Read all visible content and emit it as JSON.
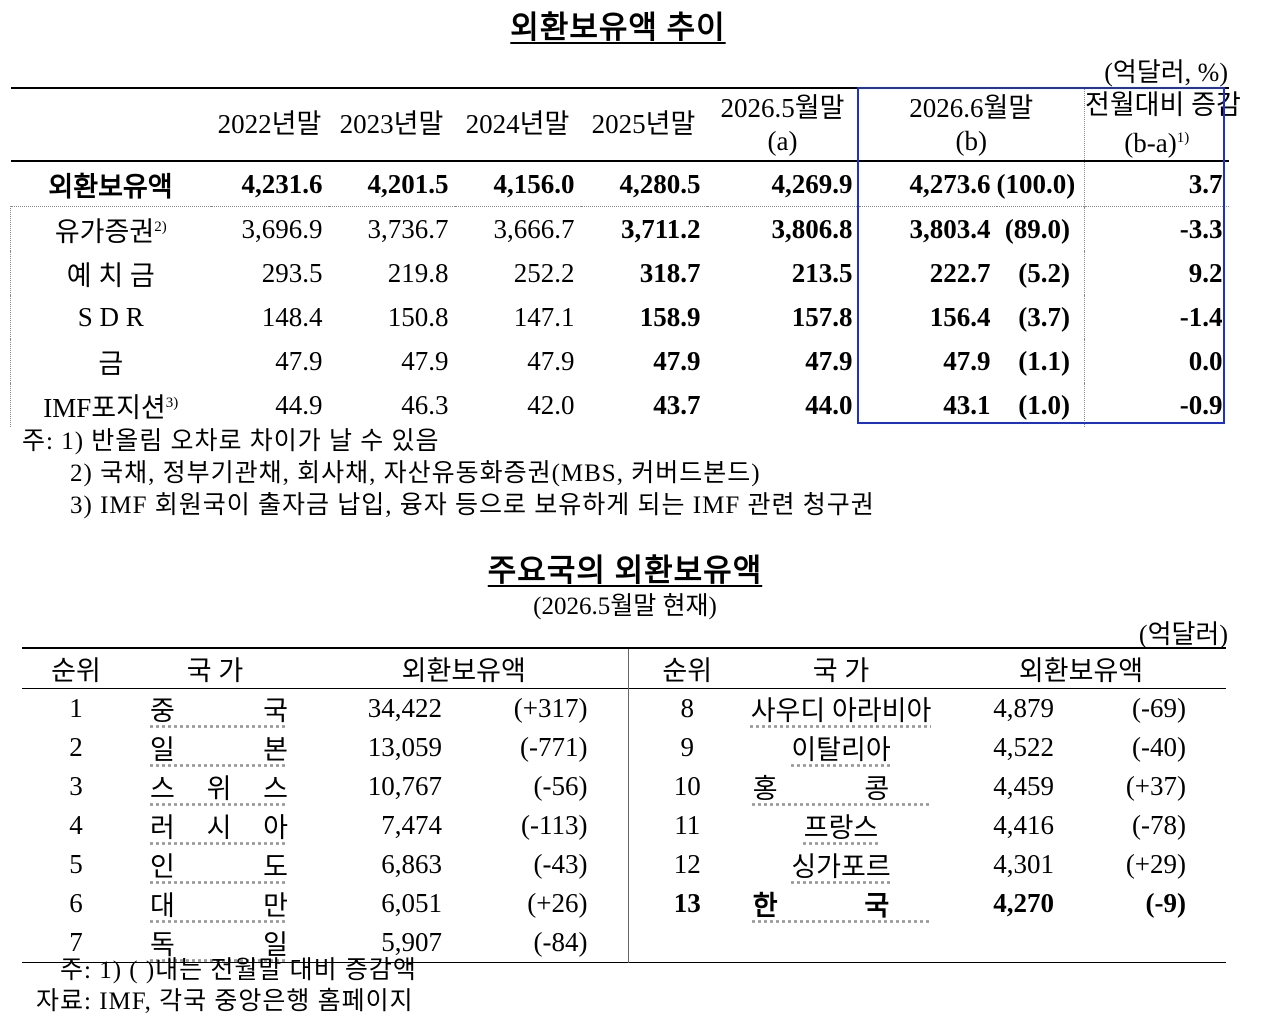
{
  "table1": {
    "title": "외환보유액 추이",
    "unit": "(억달러, %)",
    "headers": {
      "c2022": "2022년말",
      "c2023": "2023년말",
      "c2024": "2024년말",
      "c2025": "2025년말",
      "c2026_5_line1": "2026.5월말",
      "c2026_5_line2": "(a)",
      "c2026_6_line1": "2026.6월말",
      "c2026_6_line2": "(b)",
      "diff_line1": "전월대비 증감",
      "diff_line2": "(b-a)",
      "diff_sup": "1)"
    },
    "rows": [
      {
        "label": "외환보유액",
        "sup": "",
        "v2022": "4,231.6",
        "v2023": "4,201.5",
        "v2024": "4,156.0",
        "v2025": "4,280.5",
        "v2026_5": "4,269.9",
        "v2026_6": "4,273.6",
        "share": "(100.0)",
        "diff": "3.7"
      },
      {
        "label": "유가증권",
        "sup": "2)",
        "v2022": "3,696.9",
        "v2023": "3,736.7",
        "v2024": "3,666.7",
        "v2025": "3,711.2",
        "v2026_5": "3,806.8",
        "v2026_6": "3,803.4",
        "share": "(89.0)",
        "diff": "-3.3"
      },
      {
        "label": "예 치 금",
        "sup": "",
        "v2022": "293.5",
        "v2023": "219.8",
        "v2024": "252.2",
        "v2025": "318.7",
        "v2026_5": "213.5",
        "v2026_6": "222.7",
        "share": "(5.2)",
        "diff": "9.2"
      },
      {
        "label": "S D R",
        "sup": "",
        "v2022": "148.4",
        "v2023": "150.8",
        "v2024": "147.1",
        "v2025": "158.9",
        "v2026_5": "157.8",
        "v2026_6": "156.4",
        "share": "(3.7)",
        "diff": "-1.4"
      },
      {
        "label": "금",
        "sup": "",
        "v2022": "47.9",
        "v2023": "47.9",
        "v2024": "47.9",
        "v2025": "47.9",
        "v2026_5": "47.9",
        "v2026_6": "47.9",
        "share": "(1.1)",
        "diff": "0.0"
      },
      {
        "label": "IMF포지션",
        "sup": "3)",
        "v2022": "44.9",
        "v2023": "46.3",
        "v2024": "42.0",
        "v2025": "43.7",
        "v2026_5": "44.0",
        "v2026_6": "43.1",
        "share": "(1.0)",
        "diff": "-0.9"
      }
    ],
    "notes": [
      "주: 1) 반올림 오차로 차이가 날 수 있음",
      "2) 국채, 정부기관채, 회사채, 자산유동화증권(MBS, 커버드본드)",
      "3) IMF 회원국이 출자금 납입, 융자 등으로 보유하게 되는 IMF 관련 청구권"
    ]
  },
  "table2": {
    "title": "주요국의 외환보유액",
    "subtitle": "(2026.5월말 현재)",
    "unit": "(억달러)",
    "headers": {
      "rank": "순위",
      "country": "국 가",
      "reserves": "외환보유액"
    },
    "left": [
      {
        "rank": "1",
        "country": "중 국",
        "value": "34,422",
        "change": "(+317)"
      },
      {
        "rank": "2",
        "country": "일 본",
        "value": "13,059",
        "change": "(-771)"
      },
      {
        "rank": "3",
        "country": "스 위 스",
        "value": "10,767",
        "change": "(-56)"
      },
      {
        "rank": "4",
        "country": "러 시 아",
        "value": "7,474",
        "change": "(-113)"
      },
      {
        "rank": "5",
        "country": "인 도",
        "value": "6,863",
        "change": "(-43)"
      },
      {
        "rank": "6",
        "country": "대 만",
        "value": "6,051",
        "change": "(+26)"
      },
      {
        "rank": "7",
        "country": "독 일",
        "value": "5,907",
        "change": "(-84)"
      }
    ],
    "right": [
      {
        "rank": "8",
        "country": "사우디 아라비아",
        "value": "4,879",
        "change": "(-69)"
      },
      {
        "rank": "9",
        "country": "이탈리아",
        "value": "4,522",
        "change": "(-40)"
      },
      {
        "rank": "10",
        "country": "홍 콩",
        "value": "4,459",
        "change": "(+37)"
      },
      {
        "rank": "11",
        "country": "프랑스",
        "value": "4,416",
        "change": "(-78)"
      },
      {
        "rank": "12",
        "country": "싱가포르",
        "value": "4,301",
        "change": "(+29)"
      },
      {
        "rank": "13",
        "country": "한 국",
        "value": "4,270",
        "change": "(-9)"
      }
    ],
    "note": "주: 1) ( )내는 전월말 대비 증감액",
    "source": "자료: IMF, 각국 중앙은행 홈페이지"
  }
}
